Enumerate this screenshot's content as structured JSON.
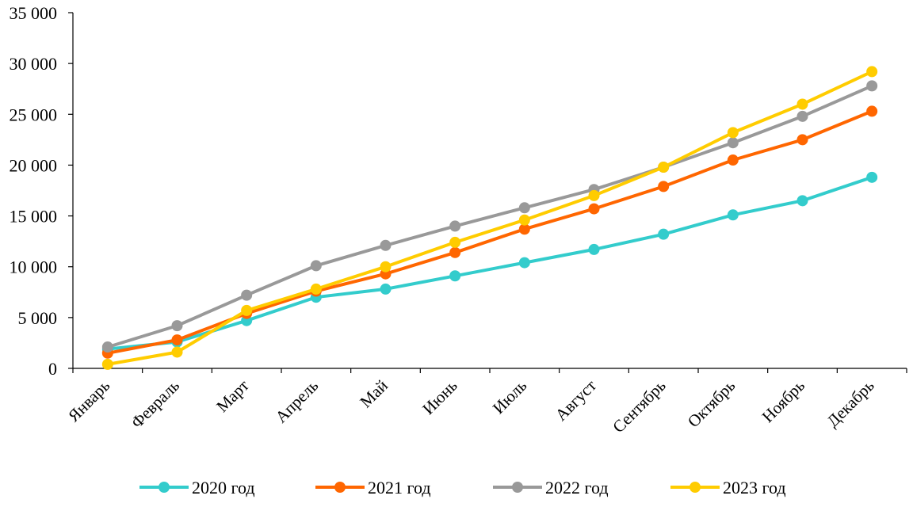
{
  "chart_data": {
    "type": "line",
    "categories": [
      "Январь",
      "Февраль",
      "Март",
      "Апрель",
      "Май",
      "Июнь",
      "Июль",
      "Август",
      "Сентябрь",
      "Октябрь",
      "Ноябрь",
      "Декабрь"
    ],
    "yticks": [
      "0",
      "5 000",
      "10 000",
      "15 000",
      "20 000",
      "25 000",
      "30 000",
      "35 000"
    ],
    "ylim": [
      0,
      35000
    ],
    "grid": false,
    "legend_position": "bottom",
    "series": [
      {
        "name": "2020 год",
        "color": "#33CCCC",
        "values": [
          1900,
          2600,
          4700,
          7000,
          7800,
          9100,
          10400,
          11700,
          13200,
          15100,
          16500,
          18800
        ]
      },
      {
        "name": "2021 год",
        "color": "#FF6600",
        "values": [
          1500,
          2800,
          5400,
          7600,
          9300,
          11400,
          13700,
          15700,
          17900,
          20500,
          22500,
          25300
        ]
      },
      {
        "name": "2022 год",
        "color": "#999999",
        "values": [
          2100,
          4200,
          7200,
          10100,
          12100,
          14000,
          15800,
          17600,
          19800,
          22200,
          24800,
          27800
        ]
      },
      {
        "name": "2023 год",
        "color": "#FFCC00",
        "values": [
          400,
          1600,
          5700,
          7800,
          10000,
          12400,
          14600,
          17000,
          19800,
          23200,
          26000,
          29200
        ]
      }
    ]
  }
}
